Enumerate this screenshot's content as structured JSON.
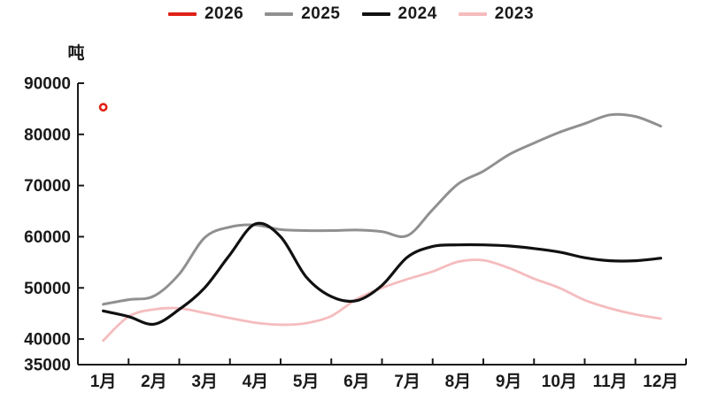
{
  "chart_data": {
    "type": "line",
    "title": "",
    "unit_label": "吨",
    "xlabel": "",
    "ylabel": "吨",
    "x_tick_labels": [
      "1月",
      "2月",
      "3月",
      "4月",
      "5月",
      "6月",
      "7月",
      "8月",
      "9月",
      "10月",
      "11月",
      "12月"
    ],
    "y_ticks": [
      35000,
      40000,
      50000,
      60000,
      70000,
      80000,
      90000
    ],
    "ylim": [
      35000,
      90000
    ],
    "xlim_months": [
      0.5,
      12.5
    ],
    "grid": "off",
    "legend_position": "top",
    "background_color": "#ffffff",
    "axis_color": "#1a1a1a",
    "series": [
      {
        "name": "2026",
        "color": "#e02016",
        "style": "point",
        "marker": "open-circle",
        "x": [
          1
        ],
        "values": [
          85300
        ]
      },
      {
        "name": "2025",
        "color": "#909090",
        "style": "line",
        "x": [
          1,
          1.5,
          2,
          2.5,
          3,
          3.5,
          4,
          4.5,
          5,
          5.5,
          6,
          6.5,
          7,
          7.5,
          8,
          8.5,
          9,
          9.5,
          10,
          10.5,
          11,
          11.5,
          12
        ],
        "values": [
          46800,
          47700,
          48400,
          52700,
          59800,
          61900,
          62300,
          61400,
          61200,
          61200,
          61300,
          61000,
          60200,
          65300,
          70300,
          72800,
          76000,
          78300,
          80400,
          82100,
          83800,
          83500,
          81600
        ]
      },
      {
        "name": "2024",
        "color": "#111111",
        "style": "line",
        "x": [
          1,
          1.5,
          2,
          2.5,
          3,
          3.5,
          4,
          4.5,
          5,
          5.5,
          6,
          6.5,
          7,
          7.5,
          8,
          8.5,
          9,
          9.5,
          10,
          10.5,
          11,
          11.5,
          12
        ],
        "values": [
          45500,
          44400,
          42900,
          45800,
          50000,
          56500,
          62500,
          60000,
          52200,
          48300,
          47500,
          50500,
          56000,
          58100,
          58400,
          58400,
          58200,
          57700,
          57000,
          55900,
          55300,
          55300,
          55800
        ]
      },
      {
        "name": "2023",
        "color": "#f5bcbe",
        "style": "line",
        "x": [
          1,
          1.5,
          2,
          2.5,
          3,
          3.5,
          4,
          4.5,
          5,
          5.5,
          6,
          6.5,
          7,
          7.5,
          8,
          8.5,
          9,
          9.5,
          10,
          10.5,
          11,
          11.5,
          12
        ],
        "values": [
          39700,
          44400,
          45800,
          46000,
          45100,
          44100,
          43200,
          42800,
          43100,
          44500,
          47800,
          50000,
          51700,
          53200,
          55100,
          55400,
          53900,
          51800,
          50000,
          47600,
          46000,
          44800,
          44000
        ]
      }
    ]
  }
}
